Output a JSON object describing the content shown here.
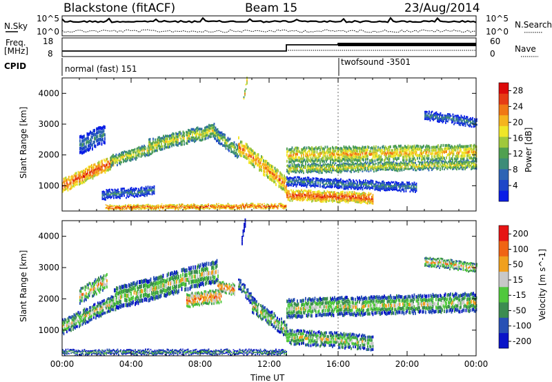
{
  "header": {
    "station": "Blackstone (fitACF)",
    "beam": "Beam 15",
    "date": "23/Aug/2014"
  },
  "noise_panel": {
    "left_label": "N.Sky",
    "right_label": "N.Search",
    "ticks": [
      "10^5",
      "10^0"
    ]
  },
  "freq_panel": {
    "left_label_line1": "Freq.",
    "left_label_line2": "[MHz]",
    "left_ticks": [
      "18",
      "8"
    ],
    "right_label": "Nave",
    "right_ticks": [
      "60",
      "0"
    ]
  },
  "cpid_panel": {
    "label": "CPID",
    "modes": [
      {
        "name": "normal (fast) 151",
        "start_hour": 0,
        "end_hour": 16
      },
      {
        "name": "twofsound -3501",
        "start_hour": 16,
        "end_hour": 24
      }
    ]
  },
  "chart_data": [
    {
      "type": "heatmap",
      "name": "Power",
      "ylabel": "Slant Range [km]",
      "xlim": [
        0,
        24
      ],
      "ylim": [
        180,
        4500
      ],
      "yticks": [
        1000,
        2000,
        3000,
        4000
      ],
      "colorbar": {
        "label": "Power [dB]",
        "ticks": [
          "4",
          "8",
          "12",
          "16",
          "20",
          "24",
          "28"
        ],
        "range": [
          0,
          30
        ],
        "colors": [
          "#0a1ee6",
          "#1e46c8",
          "#2d64b4",
          "#3c8c78",
          "#50a050",
          "#a0c83c",
          "#f0e628",
          "#f5b41e",
          "#f07814",
          "#e63c14",
          "#dc0a0a"
        ]
      }
    },
    {
      "type": "heatmap",
      "name": "Velocity",
      "ylabel": "Slant Range [km]",
      "xlabel": "Time UT",
      "xlim": [
        0,
        24
      ],
      "ylim": [
        180,
        4500
      ],
      "yticks": [
        1000,
        2000,
        3000,
        4000
      ],
      "xticks": [
        "00:00",
        "04:00",
        "08:00",
        "12:00",
        "16:00",
        "20:00",
        "00:00"
      ],
      "colorbar": {
        "label": "Velocity [m s^-1]",
        "ticks": [
          "200",
          "100",
          "50",
          "15",
          "-15",
          "-50",
          "-100",
          "-200"
        ],
        "colors": [
          "#0a14c8",
          "#2850b4",
          "#3c8c50",
          "#50c83c",
          "#c8c8c8",
          "#f0a01e",
          "#f06414",
          "#e61414"
        ]
      }
    }
  ]
}
